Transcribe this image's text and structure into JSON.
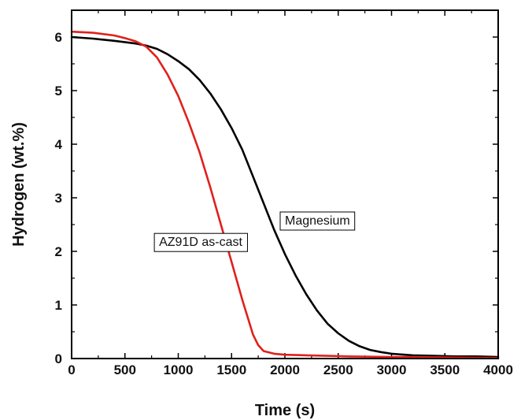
{
  "chart_data": {
    "type": "line",
    "title": "",
    "xlabel": "Time (s)",
    "ylabel": "Hydrogen (wt.%)",
    "xlim": [
      0,
      4000
    ],
    "ylim": [
      0,
      6.5
    ],
    "x_ticks": [
      "0",
      "500",
      "1000",
      "1500",
      "2000",
      "2500",
      "3000",
      "3500",
      "4000"
    ],
    "y_ticks": [
      "0",
      "1",
      "2",
      "3",
      "4",
      "5",
      "6"
    ],
    "grid": false,
    "annotations": [
      {
        "text": "Magnesium",
        "series": "Magnesium",
        "x": 2000,
        "y": 2.5
      },
      {
        "text": "AZ91D as-cast",
        "series": "AZ91D as-cast",
        "x": 820,
        "y": 2.1
      }
    ],
    "series": [
      {
        "name": "Magnesium",
        "color": "#000000",
        "x": [
          0,
          200,
          400,
          600,
          700,
          800,
          900,
          1000,
          1100,
          1200,
          1300,
          1400,
          1500,
          1600,
          1700,
          1800,
          1900,
          2000,
          2100,
          2200,
          2300,
          2400,
          2500,
          2600,
          2700,
          2800,
          2900,
          3000,
          3200,
          3400,
          3600,
          3800,
          4000
        ],
        "y": [
          6.0,
          5.97,
          5.93,
          5.88,
          5.84,
          5.78,
          5.68,
          5.55,
          5.4,
          5.2,
          4.95,
          4.65,
          4.3,
          3.9,
          3.4,
          2.9,
          2.4,
          1.95,
          1.55,
          1.2,
          0.9,
          0.65,
          0.47,
          0.33,
          0.23,
          0.16,
          0.12,
          0.09,
          0.06,
          0.05,
          0.04,
          0.04,
          0.03
        ]
      },
      {
        "name": "AZ91D as-cast",
        "color": "#e0201c",
        "x": [
          0,
          200,
          400,
          500,
          600,
          700,
          800,
          900,
          1000,
          1100,
          1200,
          1300,
          1400,
          1500,
          1600,
          1700,
          1750,
          1800,
          1900,
          2000,
          2200,
          2400,
          2600,
          3000,
          3500,
          4000
        ],
        "y": [
          6.1,
          6.08,
          6.03,
          5.98,
          5.92,
          5.82,
          5.62,
          5.3,
          4.9,
          4.4,
          3.85,
          3.2,
          2.5,
          1.8,
          1.1,
          0.45,
          0.25,
          0.14,
          0.09,
          0.07,
          0.06,
          0.05,
          0.04,
          0.03,
          0.02,
          0.01
        ]
      }
    ]
  }
}
